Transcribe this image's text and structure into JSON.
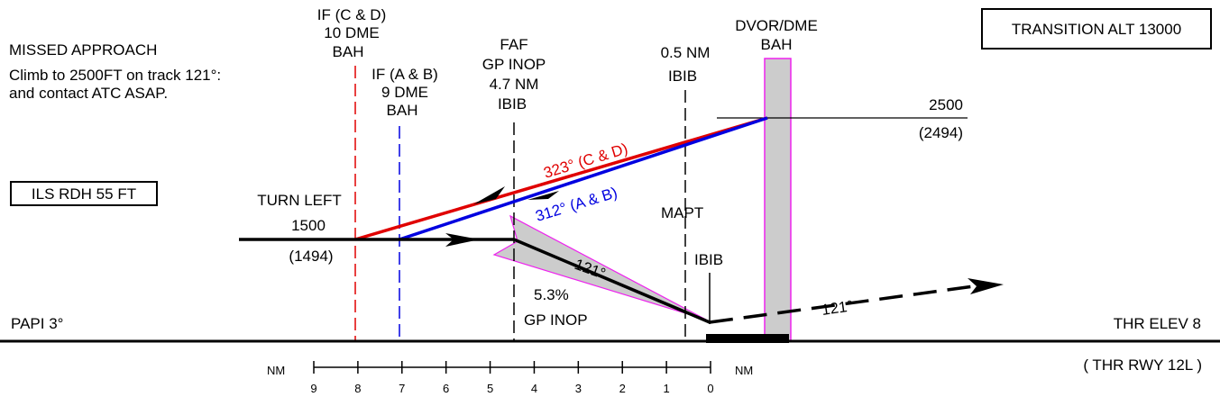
{
  "chart_data": {
    "type": "profile-view",
    "missed_approach": {
      "title": "MISSED APPROACH",
      "line1": "Climb to 2500FT on track 121°:",
      "line2": "and contact ATC ASAP."
    },
    "transition_alt": "TRANSITION ALT 13000",
    "ils_rdh": "ILS RDH 55 FT",
    "if_cd": {
      "line1": "IF (C & D)",
      "line2": "10 DME",
      "line3": "BAH",
      "distance_nm": 8.1
    },
    "if_ab": {
      "line1": "IF (A & B)",
      "line2": "9 DME",
      "line3": "BAH",
      "distance_nm": 7.1
    },
    "faf": {
      "line1": "FAF",
      "line2": "GP INOP",
      "line3": "4.7 NM",
      "line4": "IBIB",
      "distance_nm": 4.6
    },
    "point_05nm": {
      "line1": "0.5 NM",
      "line2": "IBIB",
      "distance_nm": 0.55
    },
    "dvor": {
      "line1": "DVOR/DME",
      "line2": "BAH"
    },
    "altitude_2500": {
      "alt": "2500",
      "height": "(2494)"
    },
    "turn_left": {
      "label": "TURN LEFT",
      "alt": "1500",
      "height": "(1494)"
    },
    "track_cd": {
      "label": "323° (C & D)",
      "color": "#e00000"
    },
    "track_ab": {
      "label": "312° (A & B)",
      "color": "#0000e0"
    },
    "inbound_course": "121°",
    "glidepath": {
      "gradient": "5.3%",
      "label": "GP INOP"
    },
    "mapt": "MAPT",
    "ibib": "IBIB",
    "missed_track": "121°",
    "papi": "PAPI 3°",
    "thr_elev": "THR ELEV 8",
    "thr_rwy": "( THR RWY 12L )",
    "scale": {
      "unit_left": "NM",
      "unit_right": "NM",
      "ticks": [
        "9",
        "8",
        "7",
        "6",
        "5",
        "4",
        "3",
        "2",
        "1",
        "0"
      ]
    },
    "colors": {
      "highlight_fill": "#cccccc",
      "highlight_edge": "#ee22ee"
    }
  }
}
